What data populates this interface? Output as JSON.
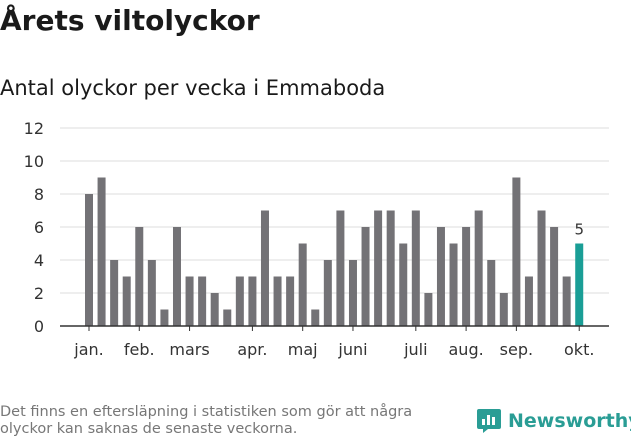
{
  "header": {
    "title": "Årets viltolyckor",
    "subtitle": "Antal olyckor per vecka i Emmaboda"
  },
  "footer": {
    "note": "Det finns en eftersläpning i statistiken som gör att några olyckor kan saknas de senaste veckorna.",
    "brand": "Newsworthy"
  },
  "colors": {
    "bar": "#737276",
    "highlight": "#1a9e96",
    "grid": "#dddddd",
    "axis": "#333333",
    "brand": "#2a9d95"
  },
  "chart_data": {
    "type": "bar",
    "title": "Antal olyckor per vecka i Emmaboda",
    "xlabel": "",
    "ylabel": "",
    "ylim": [
      0,
      12
    ],
    "yticks": [
      0,
      2,
      4,
      6,
      8,
      10,
      12
    ],
    "grid": true,
    "weeks": [
      1,
      2,
      3,
      4,
      5,
      6,
      7,
      8,
      9,
      10,
      11,
      12,
      13,
      14,
      15,
      16,
      17,
      18,
      19,
      20,
      21,
      22,
      23,
      24,
      25,
      26,
      27,
      28,
      29,
      30,
      31,
      32,
      33,
      34,
      35,
      36,
      37,
      38,
      39,
      40
    ],
    "values": [
      8,
      9,
      4,
      3,
      6,
      4,
      1,
      6,
      3,
      3,
      2,
      1,
      3,
      3,
      7,
      3,
      3,
      5,
      1,
      4,
      7,
      4,
      6,
      7,
      7,
      5,
      7,
      2,
      6,
      5,
      6,
      7,
      4,
      2,
      9,
      3,
      7,
      6,
      3,
      5
    ],
    "highlight_last": true,
    "last_value_label": "5",
    "month_labels": [
      {
        "label": "jan.",
        "week": 1
      },
      {
        "label": "feb.",
        "week": 5
      },
      {
        "label": "mars",
        "week": 9
      },
      {
        "label": "apr.",
        "week": 14
      },
      {
        "label": "maj",
        "week": 18
      },
      {
        "label": "juni",
        "week": 22
      },
      {
        "label": "juli",
        "week": 27
      },
      {
        "label": "aug.",
        "week": 31
      },
      {
        "label": "sep.",
        "week": 35
      },
      {
        "label": "okt.",
        "week": 40
      }
    ]
  }
}
